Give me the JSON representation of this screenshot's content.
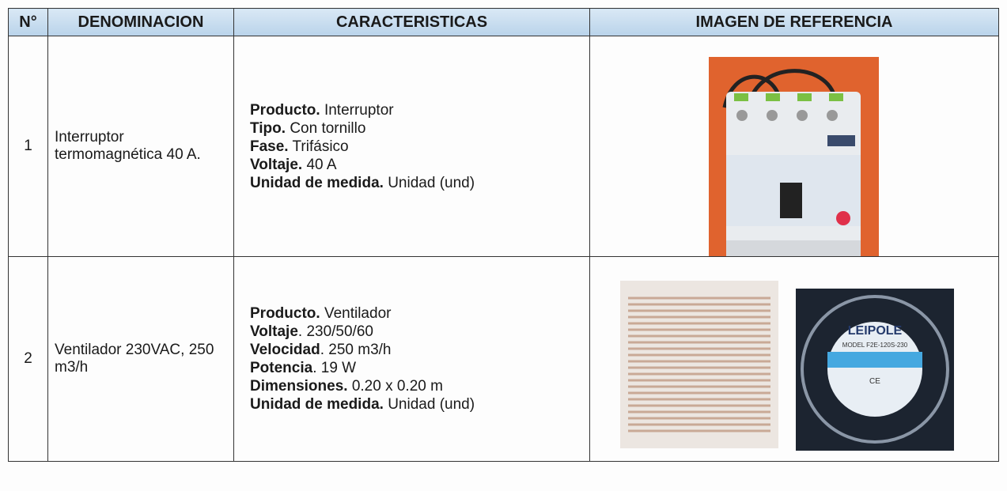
{
  "table": {
    "header": [
      "N°",
      "DENOMINACION",
      "CARACTERISTICAS",
      "IMAGEN DE REFERENCIA"
    ],
    "rows": [
      {
        "number": "1",
        "name": "Interruptor termomagnética 40 A.",
        "features": [
          {
            "label": "Producto.",
            "value": " Interruptor"
          },
          {
            "label": "Tipo.",
            "value": " Con tornillo"
          },
          {
            "label": "Fase.",
            "value": " Trifásico"
          },
          {
            "label": "Voltaje.",
            "value": " 40 A"
          },
          {
            "label": "Unidad de medida.",
            "value": " Unidad (und)"
          }
        ]
      },
      {
        "number": "2",
        "name": "Ventilador 230VAC, 250 m3/h",
        "features": [
          {
            "label": "Producto.",
            "value": " Ventilador"
          },
          {
            "label": "Voltaje",
            "value": ". 230/50/60"
          },
          {
            "label": "Velocidad",
            "value": ". 250 m3/h"
          },
          {
            "label": "Potencia",
            "value": ". 19 W"
          },
          {
            "label": "Dimensiones.",
            "value": " 0.20 x 0.20 m"
          },
          {
            "label": "Unidad de medida.",
            "value": " Unidad (und)"
          }
        ],
        "image_texts": [
          "LEIPOLE",
          "MODEL F2E-120S-230",
          "CE"
        ]
      }
    ]
  }
}
